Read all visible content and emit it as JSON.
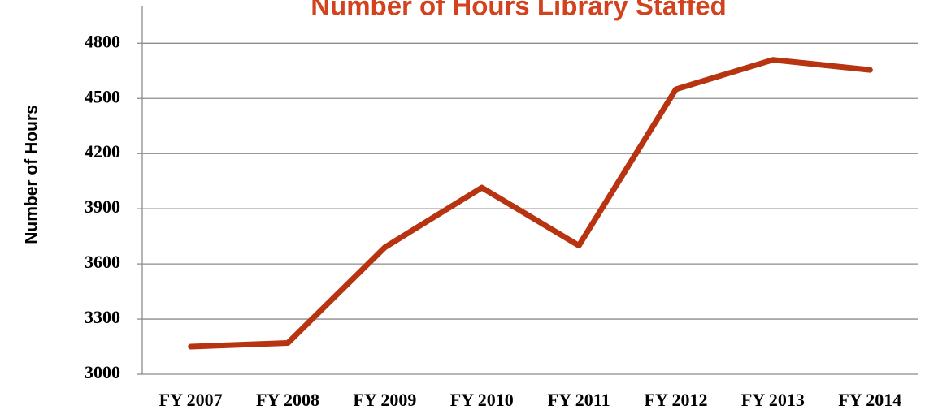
{
  "chart_data": {
    "type": "line",
    "title": "Number of Hours Library Staffed",
    "y_label": "Number of Hours",
    "categories": [
      "FY 2007",
      "FY 2008",
      "FY 2009",
      "FY 2010",
      "FY 2011",
      "FY 2012",
      "FY 2013",
      "FY 2014"
    ],
    "values": [
      3150,
      3170,
      3690,
      4015,
      3700,
      4550,
      4710,
      4655
    ],
    "color": "#b8330f",
    "ylim": [
      3000,
      5000
    ],
    "yticks": [
      3000,
      3300,
      3600,
      3900,
      4200,
      4500,
      4800
    ],
    "grid": true
  }
}
